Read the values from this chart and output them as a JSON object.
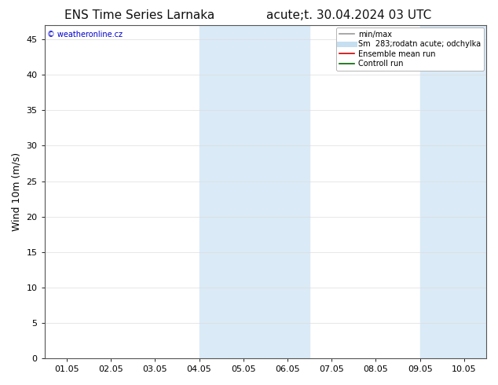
{
  "title_left": "ENS Time Series Larnaka",
  "title_right": "acute;t. 30.04.2024 03 UTC",
  "ylabel": "Wind 10m (m/s)",
  "watermark": "© weatheronline.cz",
  "watermark_color": "#0000cc",
  "ylim": [
    0,
    47
  ],
  "yticks": [
    0,
    5,
    10,
    15,
    20,
    25,
    30,
    35,
    40,
    45
  ],
  "xtick_labels": [
    "01.05",
    "02.05",
    "03.05",
    "04.05",
    "05.05",
    "06.05",
    "07.05",
    "08.05",
    "09.05",
    "10.05"
  ],
  "num_xticks": 10,
  "background_color": "#ffffff",
  "plot_bg_color": "#ffffff",
  "shaded_regions": [
    {
      "xstart": 3.0,
      "xend": 3.5,
      "color": "#daeaf7"
    },
    {
      "xstart": 3.5,
      "xend": 5.0,
      "color": "#daeaf7"
    },
    {
      "xstart": 5.0,
      "xend": 5.5,
      "color": "#daeaf7"
    },
    {
      "xstart": 8.0,
      "xend": 8.5,
      "color": "#daeaf7"
    },
    {
      "xstart": 8.5,
      "xend": 9.5,
      "color": "#daeaf7"
    },
    {
      "xstart": 9.5,
      "xend": 10.0,
      "color": "#daeaf7"
    }
  ],
  "shaded_simple": [
    {
      "xstart": 3.0,
      "xend": 5.5,
      "color": "#daeaf7"
    },
    {
      "xstart": 8.0,
      "xend": 10.0,
      "color": "#daeaf7"
    }
  ],
  "legend_entries": [
    {
      "label": "min/max",
      "color": "#999999",
      "lw": 1.2
    },
    {
      "label": "Sm  283;rodatn acute; odchylka",
      "color": "#c5dff0",
      "lw": 5
    },
    {
      "label": "Ensemble mean run",
      "color": "#cc0000",
      "lw": 1.2
    },
    {
      "label": "Controll run",
      "color": "#006600",
      "lw": 1.2
    }
  ],
  "title_fontsize": 11,
  "ylabel_fontsize": 9,
  "tick_fontsize": 8,
  "legend_fontsize": 7,
  "watermark_fontsize": 7,
  "grid_color": "#dddddd",
  "grid_lw": 0.5,
  "spine_color": "#555555",
  "spine_lw": 0.8
}
